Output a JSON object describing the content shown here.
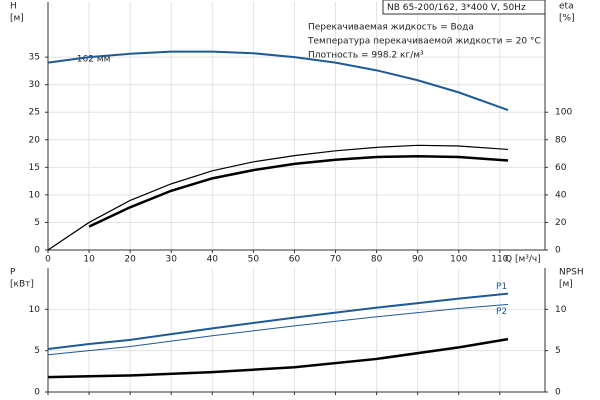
{
  "header": "NB 65-200/162, 3*400 V, 50Hz",
  "notes": [
    "Перекачиваемая жидкость = Вода",
    "Температура перекачиваемой жидкости = 20 °C",
    "Плотность = 998.2 кг/м³"
  ],
  "chart_data": [
    {
      "type": "line",
      "y_label": [
        "H",
        "[м]"
      ],
      "y2_label": [
        "eta",
        "[%]"
      ],
      "x_label": "Q [м³/ч]",
      "annotation": "162 мм",
      "xlim": [
        0,
        121
      ],
      "xticks": [
        0,
        10,
        20,
        30,
        40,
        50,
        60,
        70,
        80,
        90,
        100,
        110
      ],
      "ylim": [
        0,
        45
      ],
      "yticks": [
        0,
        5,
        10,
        15,
        20,
        25,
        30,
        35
      ],
      "y2lim": [
        0,
        180
      ],
      "y2ticks": [
        0,
        20,
        40,
        60,
        80,
        100
      ],
      "grid": true,
      "series": [
        {
          "color": "#1f5a96",
          "width": 2,
          "x": [
            0,
            10,
            20,
            30,
            40,
            50,
            60,
            70,
            80,
            90,
            100,
            112
          ],
          "values": [
            34,
            35,
            35.6,
            36,
            36,
            35.7,
            35,
            34,
            32.6,
            30.8,
            28.6,
            25.4
          ]
        },
        {
          "color": "#000000",
          "width": 1.2,
          "axis": "y2",
          "x": [
            0,
            10,
            20,
            30,
            40,
            50,
            60,
            70,
            80,
            90,
            100,
            112
          ],
          "values": [
            0,
            20,
            36,
            48,
            57.5,
            64,
            68.5,
            72,
            74.5,
            76,
            75.5,
            73
          ]
        },
        {
          "color": "#000000",
          "width": 2.5,
          "axis": "y2",
          "x": [
            10,
            20,
            30,
            40,
            50,
            60,
            70,
            80,
            90,
            100,
            112
          ],
          "values": [
            17,
            31,
            43,
            52,
            58,
            62.5,
            65.5,
            67.5,
            68,
            67.5,
            65
          ]
        }
      ]
    },
    {
      "type": "line",
      "y_label": [
        "P",
        "[кВт]"
      ],
      "y2_label": [
        "NPSH",
        "[м]"
      ],
      "xlim": [
        0,
        121
      ],
      "ylim": [
        0,
        15
      ],
      "yticks": [
        0,
        5,
        10
      ],
      "y2lim": [
        0,
        15
      ],
      "y2ticks": [
        0,
        5,
        10
      ],
      "grid": true,
      "series": [
        {
          "name": "P1",
          "color": "#1f5a96",
          "width": 2,
          "x": [
            0,
            10,
            20,
            40,
            60,
            80,
            100,
            112
          ],
          "values": [
            5.2,
            5.8,
            6.3,
            7.7,
            9.0,
            10.2,
            11.3,
            11.9
          ]
        },
        {
          "name": "P2",
          "color": "#1f5a96",
          "width": 1,
          "x": [
            0,
            10,
            20,
            40,
            60,
            80,
            100,
            112
          ],
          "values": [
            4.5,
            5.0,
            5.5,
            6.8,
            8.0,
            9.1,
            10.1,
            10.6
          ]
        },
        {
          "color": "#000000",
          "width": 2.5,
          "axis": "y2",
          "x": [
            0,
            10,
            20,
            40,
            60,
            80,
            100,
            112
          ],
          "values": [
            1.8,
            1.9,
            2.0,
            2.4,
            3.0,
            4.0,
            5.4,
            6.4
          ]
        }
      ]
    }
  ]
}
